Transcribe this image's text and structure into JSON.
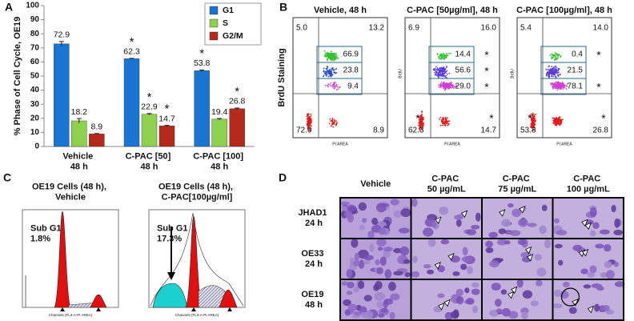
{
  "chart_data": {
    "type": "bar",
    "panel_label": "A",
    "y_label": "% Phase of Cell Cycle, OE19",
    "categories": [
      "Vehicle\n48 h",
      "C-PAC [50]\n48 h",
      "C-PAC [100]\n48 h"
    ],
    "series": [
      {
        "name": "G1",
        "color": "#1a75d2",
        "values": [
          72.9,
          62.3,
          53.8
        ],
        "errors": [
          1.6,
          0.3,
          0.5
        ],
        "markers": [
          null,
          "*",
          "*"
        ]
      },
      {
        "name": "S",
        "color": "#8ed14f",
        "values": [
          18.2,
          22.9,
          19.4
        ],
        "errors": [
          1.6,
          0.5,
          0.5
        ],
        "markers": [
          null,
          "*",
          null
        ]
      },
      {
        "name": "G2/M",
        "color": "#b5291c",
        "values": [
          8.9,
          14.7,
          26.8
        ],
        "errors": [
          0.3,
          0.3,
          0.5
        ],
        "markers": [
          null,
          "*",
          "*"
        ]
      }
    ],
    "ylim": [
      0,
      100
    ],
    "yticks": [
      0,
      10,
      20,
      30,
      40,
      50,
      60,
      70,
      80,
      90,
      100
    ],
    "legend": "top-right"
  },
  "panel_b": {
    "label": "B",
    "x_label": "PI AREA",
    "plots": [
      {
        "title": "Vehicle, 48 h",
        "y_label": "BrdU Staining",
        "quadrants": [
          {
            "text": "5.0"
          },
          {
            "text": "13.2"
          },
          {
            "text": "72.9"
          },
          {
            "text": "8.9"
          }
        ],
        "gates": [
          {
            "text": "66.9"
          },
          {
            "text": "23.8"
          },
          {
            "text": "9.4"
          }
        ]
      },
      {
        "title": "C-PAC [50µg/ml], 48 h",
        "y_label": "BrdU",
        "quadrants": [
          {
            "text": "6.9"
          },
          {
            "text": "16.0"
          },
          {
            "text": "62.3",
            "sig": "*"
          },
          {
            "text": "14.7",
            "sig": "*"
          }
        ],
        "gates": [
          {
            "text": "14.4",
            "sig": "*"
          },
          {
            "text": "56.6",
            "sig": "*"
          },
          {
            "text": "29.0",
            "sig": "*"
          }
        ]
      },
      {
        "title": "C-PAC [100µg/ml], 48 h",
        "y_label": "BrdU",
        "quadrants": [
          {
            "text": "5.4"
          },
          {
            "text": "14.0"
          },
          {
            "text": "53.8",
            "sig": "*"
          },
          {
            "text": "26.8",
            "sig": "*"
          }
        ],
        "gates": [
          {
            "text": "0.4",
            "sig": "*"
          },
          {
            "text": "21.5"
          },
          {
            "text": "78.1",
            "sig": "*"
          }
        ]
      }
    ]
  },
  "panel_c": {
    "label": "C",
    "x_label": "Channels (FL3-A-PI AREA)",
    "plots": [
      {
        "title": "OE19 Cells (48 h),\nVehicle",
        "sub_g1": "Sub G1\n1.8%"
      },
      {
        "title": "OE19 Cells (48 h),\nC-PAC[100µg/ml]",
        "sub_g1": "Sub G1\n17.3%"
      }
    ]
  },
  "panel_d": {
    "label": "D",
    "columns": [
      "Vehicle",
      "C-PAC\n50 µg/mL",
      "C-PAC\n75 µg/mL",
      "C-PAC\n100 µg/mL"
    ],
    "rows": [
      "JHAD1\n24 h",
      "OE33\n24 h",
      "OE19\n48 h"
    ]
  }
}
